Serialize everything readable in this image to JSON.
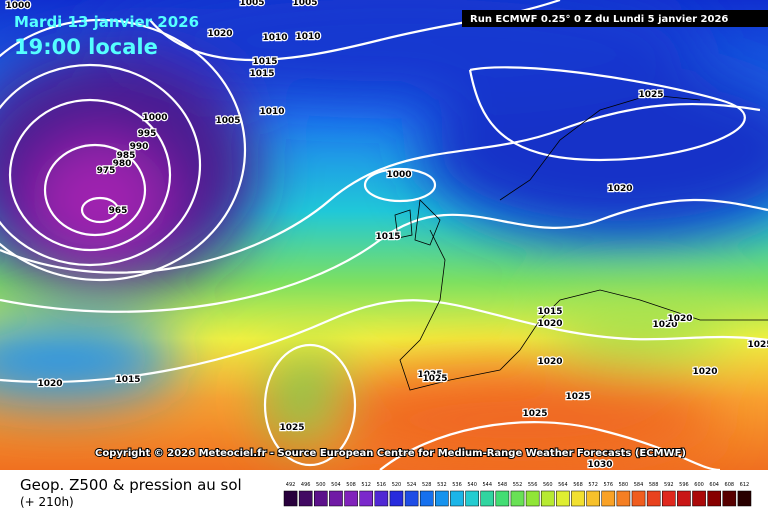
{
  "header": {
    "date": "Mardi 13 janvier 2026",
    "time": "19:00 locale",
    "run": "Run ECMWF 0.25° 0 Z du Lundi 5 janvier 2026"
  },
  "map": {
    "isobar_labels": [
      "1000",
      "1005",
      "1005",
      "1020",
      "1010",
      "1010",
      "1015",
      "1015",
      "1010",
      "1005",
      "1000",
      "995",
      "990",
      "985",
      "980",
      "975",
      "965",
      "1000",
      "1015",
      "1025",
      "1020",
      "1015",
      "1020",
      "1020",
      "1020",
      "1020",
      "1025",
      "1025",
      "1020",
      "1015",
      "1025",
      "1025",
      "1025",
      "1020",
      "1030",
      "1025"
    ],
    "copyright": "Copyright © 2026 Meteociel.fr - Source European Centre for Medium-Range Weather Forecasts (ECMWF)"
  },
  "footer": {
    "title": "Geop. Z500 & pression au sol",
    "lead": "(+ 210h)"
  },
  "legend": {
    "scale": [
      492,
      496,
      500,
      504,
      508,
      512,
      516,
      520,
      524,
      528,
      532,
      536,
      540,
      544,
      548,
      552,
      556,
      560,
      564,
      568,
      572,
      576,
      580,
      584,
      588,
      592,
      596,
      600,
      604,
      608,
      612
    ]
  }
}
